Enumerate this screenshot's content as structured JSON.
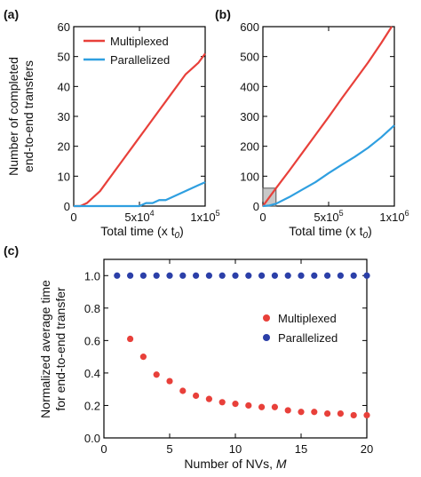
{
  "colors": {
    "multiplexed": "#e8403a",
    "parallelized": "#2f9fe0",
    "parallelized_c": "#2b3fa8",
    "inset": "#c8c8c8"
  },
  "ylabel_ab_line1": "Number of completed",
  "ylabel_ab_line2": "end-to-end transfers",
  "chart_data": [
    {
      "type": "line",
      "panel_label": "(a)",
      "xlabel": "Total time (x t",
      "xlabel_sub": "0",
      "xlabel_close": ")",
      "xlim": [
        0,
        100000
      ],
      "ylim": [
        0,
        60
      ],
      "xticks": [
        0,
        50000,
        100000
      ],
      "xtick_labels": [
        "0",
        "5x10",
        "1x10"
      ],
      "xtick_exponents": [
        "",
        "4",
        "5"
      ],
      "yticks": [
        0,
        10,
        20,
        30,
        40,
        50,
        60
      ],
      "ytick_labels": [
        "0",
        "10",
        "20",
        "30",
        "40",
        "50",
        "60"
      ],
      "legend": [
        "Multiplexed",
        "Parallelized"
      ],
      "legend_position": "upper-left",
      "series": [
        {
          "name": "Multiplexed",
          "x": [
            0,
            5000,
            10000,
            15000,
            20000,
            25000,
            30000,
            35000,
            40000,
            45000,
            50000,
            55000,
            60000,
            65000,
            70000,
            75000,
            80000,
            85000,
            90000,
            95000,
            100000
          ],
          "y": [
            0,
            0,
            1,
            3,
            5,
            8,
            11,
            14,
            17,
            20,
            23,
            26,
            29,
            32,
            35,
            38,
            41,
            44,
            46,
            48,
            51
          ]
        },
        {
          "name": "Parallelized",
          "x": [
            0,
            30000,
            40000,
            50000,
            55000,
            60000,
            65000,
            70000,
            75000,
            80000,
            85000,
            90000,
            95000,
            100000
          ],
          "y": [
            0,
            0,
            0,
            0,
            1,
            1,
            2,
            2,
            3,
            4,
            5,
            6,
            7,
            8
          ]
        }
      ]
    },
    {
      "type": "line",
      "panel_label": "(b)",
      "xlabel": "Total time (x t",
      "xlabel_sub": "0",
      "xlabel_close": ")",
      "xlim": [
        0,
        1000000
      ],
      "ylim": [
        0,
        600
      ],
      "xticks": [
        0,
        500000,
        1000000
      ],
      "xtick_labels": [
        "0",
        "5x10",
        "1x10"
      ],
      "xtick_exponents": [
        "",
        "5",
        "6"
      ],
      "yticks": [
        0,
        100,
        200,
        300,
        400,
        500,
        600
      ],
      "ytick_labels": [
        "0",
        "100",
        "200",
        "300",
        "400",
        "500",
        "600"
      ],
      "inset_region": {
        "x": [
          0,
          100000
        ],
        "y": [
          0,
          60
        ]
      },
      "series": [
        {
          "name": "Multiplexed",
          "x": [
            0,
            100000,
            200000,
            300000,
            400000,
            500000,
            600000,
            700000,
            800000,
            900000,
            980000
          ],
          "y": [
            0,
            60,
            118,
            178,
            238,
            298,
            360,
            420,
            480,
            545,
            600
          ]
        },
        {
          "name": "Parallelized",
          "x": [
            0,
            50000,
            100000,
            200000,
            300000,
            400000,
            500000,
            600000,
            700000,
            800000,
            900000,
            1000000
          ],
          "y": [
            0,
            2,
            8,
            30,
            55,
            80,
            110,
            138,
            165,
            195,
            230,
            270
          ]
        }
      ]
    },
    {
      "type": "scatter",
      "panel_label": "(c)",
      "xlabel": "Number of NVs, ",
      "xlabel_italic": "M",
      "ylabel_line1": "Normalized average time",
      "ylabel_line2": "for end-to-end transfer",
      "xlim": [
        0,
        20
      ],
      "ylim": [
        0,
        1.1
      ],
      "xticks": [
        0,
        5,
        10,
        15,
        20
      ],
      "xtick_labels": [
        "0",
        "5",
        "10",
        "15",
        "20"
      ],
      "yticks": [
        0,
        0.2,
        0.4,
        0.6,
        0.8,
        1.0
      ],
      "ytick_labels": [
        "0.0",
        "0.2",
        "0.4",
        "0.6",
        "0.8",
        "1.0"
      ],
      "legend": [
        "Multiplexed",
        "Parallelized"
      ],
      "legend_position": "center-right",
      "series": [
        {
          "name": "Multiplexed",
          "x": [
            2,
            3,
            4,
            5,
            6,
            7,
            8,
            9,
            10,
            11,
            12,
            13,
            14,
            15,
            16,
            17,
            18,
            19,
            20
          ],
          "y": [
            0.61,
            0.5,
            0.39,
            0.35,
            0.29,
            0.26,
            0.24,
            0.22,
            0.21,
            0.2,
            0.19,
            0.19,
            0.17,
            0.16,
            0.16,
            0.15,
            0.15,
            0.14,
            0.14
          ]
        },
        {
          "name": "Parallelized",
          "x": [
            1,
            2,
            3,
            4,
            5,
            6,
            7,
            8,
            9,
            10,
            11,
            12,
            13,
            14,
            15,
            16,
            17,
            18,
            19,
            20
          ],
          "y": [
            1,
            1,
            1,
            1,
            1,
            1,
            1,
            1,
            1,
            1,
            1,
            1,
            1,
            1,
            1,
            1,
            1,
            1,
            1,
            1
          ]
        }
      ]
    }
  ]
}
